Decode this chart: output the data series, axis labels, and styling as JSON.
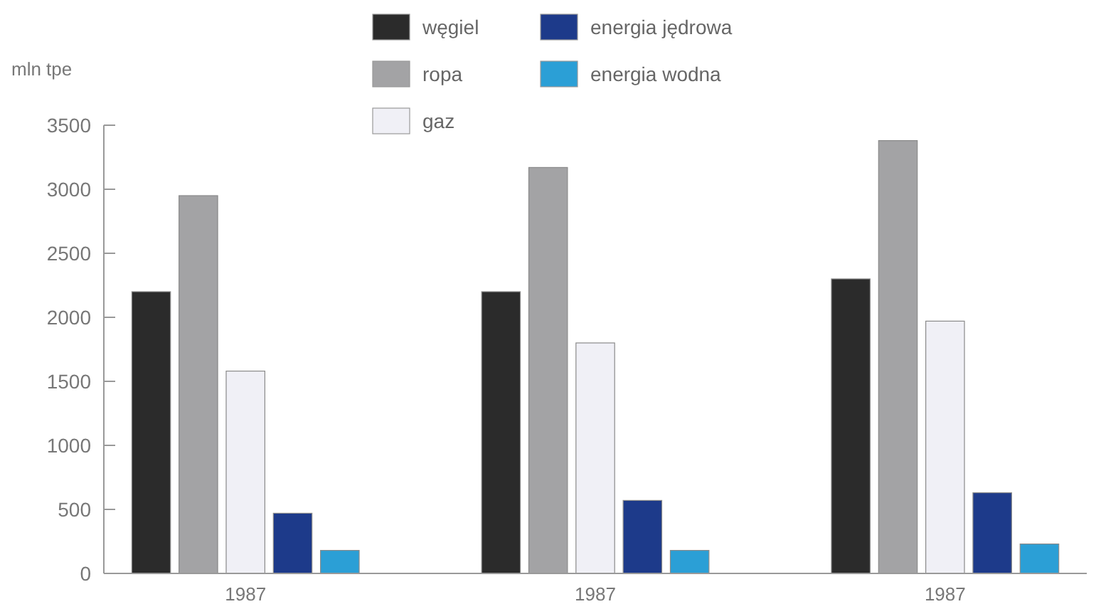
{
  "chart_data": {
    "type": "bar",
    "ylabel": "mln tpe",
    "categories": [
      "1987",
      "1987",
      "1987"
    ],
    "series": [
      {
        "name": "węgiel",
        "color": "#2b2b2b",
        "values": [
          2200,
          2200,
          2300
        ]
      },
      {
        "name": "ropa",
        "color": "#a3a3a5",
        "values": [
          2950,
          3170,
          3380
        ]
      },
      {
        "name": "gaz",
        "color": "#f0f0f6",
        "values": [
          1580,
          1800,
          1970
        ]
      },
      {
        "name": "energia jędrowa",
        "color": "#1d3a8a",
        "values": [
          470,
          570,
          630
        ]
      },
      {
        "name": "energia wodna",
        "color": "#2b9fd6",
        "values": [
          180,
          180,
          230
        ]
      }
    ],
    "ylim": [
      0,
      3500
    ],
    "yticks": [
      0,
      500,
      1000,
      1500,
      2000,
      2500,
      3000,
      3500
    ],
    "grid": false,
    "legend": "top"
  }
}
